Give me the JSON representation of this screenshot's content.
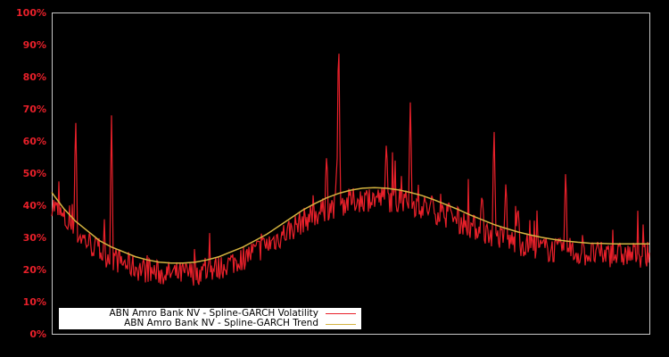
{
  "chart_data": {
    "type": "line",
    "title": "",
    "xlabel": "",
    "ylabel": "",
    "ylim": [
      0,
      100
    ],
    "y_tick_labels": [
      "0%",
      "10%",
      "20%",
      "30%",
      "40%",
      "50%",
      "60%",
      "70%",
      "80%",
      "90%",
      "100%"
    ],
    "grid": false,
    "legend_position": "lower left",
    "x": [
      0,
      0.02,
      0.04,
      0.06,
      0.08,
      0.1,
      0.12,
      0.14,
      0.16,
      0.18,
      0.2,
      0.22,
      0.24,
      0.26,
      0.28,
      0.3,
      0.32,
      0.34,
      0.36,
      0.38,
      0.4,
      0.42,
      0.44,
      0.46,
      0.48,
      0.5,
      0.52,
      0.54,
      0.56,
      0.58,
      0.6,
      0.62,
      0.64,
      0.66,
      0.68,
      0.7,
      0.72,
      0.74,
      0.76,
      0.78,
      0.8,
      0.82,
      0.84,
      0.86,
      0.88,
      0.9,
      0.92,
      0.94,
      0.96,
      0.98,
      1.0
    ],
    "series": [
      {
        "name": "ABN Amro Bank NV - Spline-GARCH Volatility",
        "color": "#e8202a",
        "values": [
          38,
          34,
          69,
          33,
          30,
          68,
          27,
          26,
          29,
          25,
          23,
          22,
          20,
          21,
          22,
          23,
          25,
          25,
          27,
          29,
          33,
          33,
          35,
          56,
          98,
          52,
          48,
          44,
          60,
          42,
          72,
          43,
          46,
          40,
          42,
          40,
          44,
          66,
          48,
          40,
          36,
          34,
          31,
          52,
          31,
          30,
          29,
          33,
          30,
          28,
          27
        ]
      },
      {
        "name": "ABN Amro Bank NV - Spline-GARCH Trend",
        "color": "#d4b340",
        "values": [
          44,
          39,
          35,
          32,
          29,
          27,
          25.5,
          24,
          23,
          22.3,
          22,
          22,
          22.3,
          23,
          24,
          25.5,
          27,
          29,
          31,
          33.5,
          36,
          38.5,
          40.5,
          42.3,
          43.7,
          44.7,
          45.3,
          45.5,
          45.3,
          44.8,
          44,
          43,
          41.7,
          40.2,
          38.7,
          37,
          35.5,
          34,
          32.8,
          31.7,
          30.8,
          30,
          29.4,
          28.9,
          28.5,
          28.2,
          28.1,
          28,
          28,
          28,
          28
        ]
      }
    ]
  },
  "legend": {
    "items": [
      {
        "label": "ABN Amro Bank NV - Spline-GARCH Volatility",
        "color": "#e8202a"
      },
      {
        "label": "ABN Amro Bank NV - Spline-GARCH Trend",
        "color": "#d4b340"
      }
    ]
  },
  "axis": {
    "ticks": [
      "100%",
      "90%",
      "80%",
      "70%",
      "60%",
      "50%",
      "40%",
      "30%",
      "20%",
      "10%",
      "0%"
    ]
  },
  "colors": {
    "background": "#000000",
    "frame": "#c8c8c8",
    "tick_label": "#e8202a",
    "volatility": "#e8202a",
    "trend": "#d4b340"
  }
}
